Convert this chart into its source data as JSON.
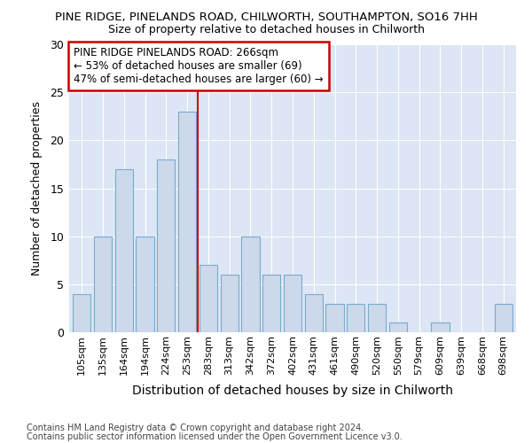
{
  "title1": "PINE RIDGE, PINELANDS ROAD, CHILWORTH, SOUTHAMPTON, SO16 7HH",
  "title2": "Size of property relative to detached houses in Chilworth",
  "xlabel": "Distribution of detached houses by size in Chilworth",
  "ylabel": "Number of detached properties",
  "categories": [
    "105sqm",
    "135sqm",
    "164sqm",
    "194sqm",
    "224sqm",
    "253sqm",
    "283sqm",
    "313sqm",
    "342sqm",
    "372sqm",
    "402sqm",
    "431sqm",
    "461sqm",
    "490sqm",
    "520sqm",
    "550sqm",
    "579sqm",
    "609sqm",
    "639sqm",
    "668sqm",
    "698sqm"
  ],
  "values": [
    4,
    10,
    17,
    10,
    18,
    23,
    7,
    6,
    10,
    6,
    6,
    4,
    3,
    3,
    3,
    1,
    0,
    1,
    0,
    0,
    3
  ],
  "bar_color": "#ccd9ea",
  "bar_edge_color": "#7aaace",
  "red_line_x": 5.5,
  "annotation_text": "PINE RIDGE PINELANDS ROAD: 266sqm\n← 53% of detached houses are smaller (69)\n47% of semi-detached houses are larger (60) →",
  "annotation_box_color": "#ffffff",
  "annotation_box_edge_color": "#cc0000",
  "ylim": [
    0,
    30
  ],
  "yticks": [
    0,
    5,
    10,
    15,
    20,
    25,
    30
  ],
  "figure_bg": "#ffffff",
  "axes_bg": "#dce6f5",
  "grid_color": "#ffffff",
  "red_line_color": "#cc0000",
  "footer1": "Contains HM Land Registry data © Crown copyright and database right 2024.",
  "footer2": "Contains public sector information licensed under the Open Government Licence v3.0."
}
